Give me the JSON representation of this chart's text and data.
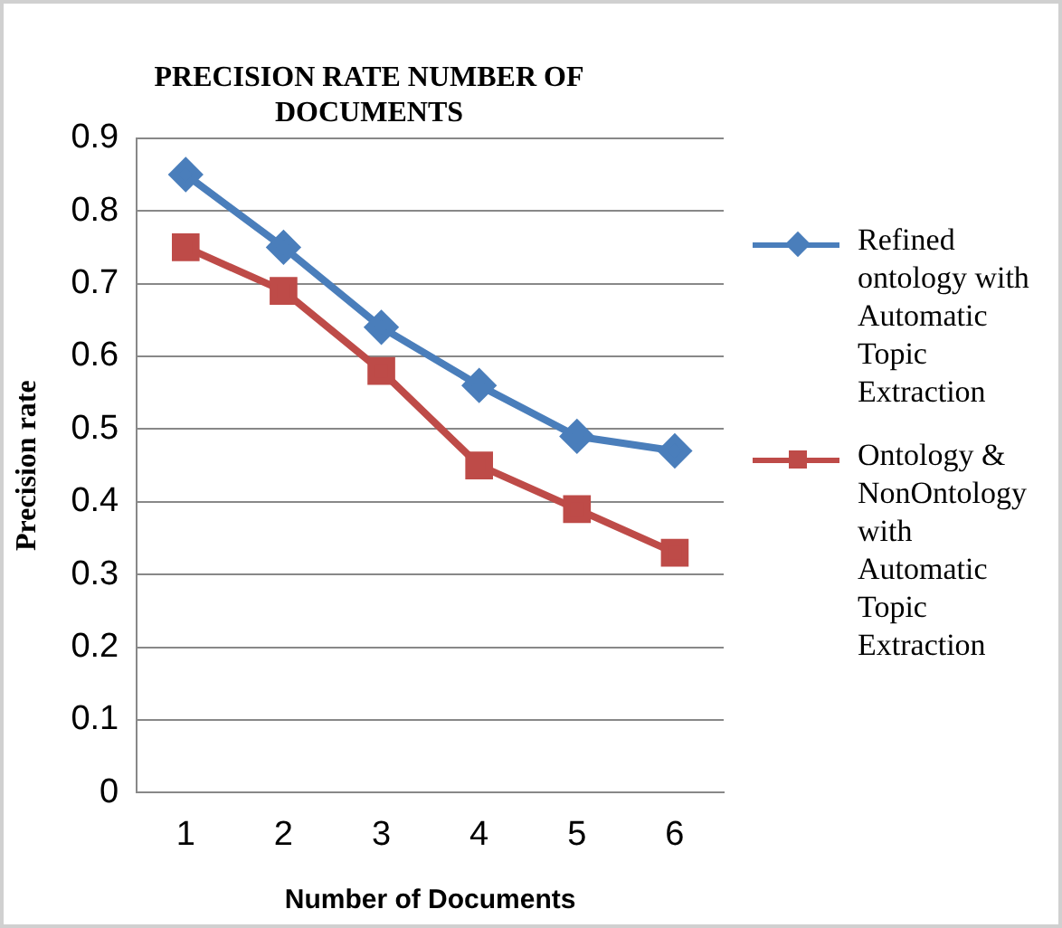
{
  "chart_data": {
    "type": "line",
    "title": "PRECISION RATE NUMBER OF DOCUMENTS",
    "xlabel": "Number of Documents",
    "ylabel": "Precision rate",
    "categories": [
      "1",
      "2",
      "3",
      "4",
      "5",
      "6"
    ],
    "series": [
      {
        "name": "Refined ontology with Automatic Topic Extraction",
        "color": "#4a7ebb",
        "marker": "diamond",
        "values": [
          0.85,
          0.75,
          0.64,
          0.56,
          0.49,
          0.47
        ]
      },
      {
        "name": "Ontology & NonOntology with Automatic Topic Extraction",
        "color": "#be4b48",
        "marker": "square",
        "values": [
          0.75,
          0.69,
          0.58,
          0.45,
          0.39,
          0.33
        ]
      }
    ],
    "ylim": [
      0,
      0.9
    ],
    "yticks": [
      0,
      0.1,
      0.2,
      0.3,
      0.4,
      0.5,
      0.6,
      0.7,
      0.8,
      0.9
    ],
    "grid": "y",
    "legend": "right",
    "line_style": "solid"
  }
}
